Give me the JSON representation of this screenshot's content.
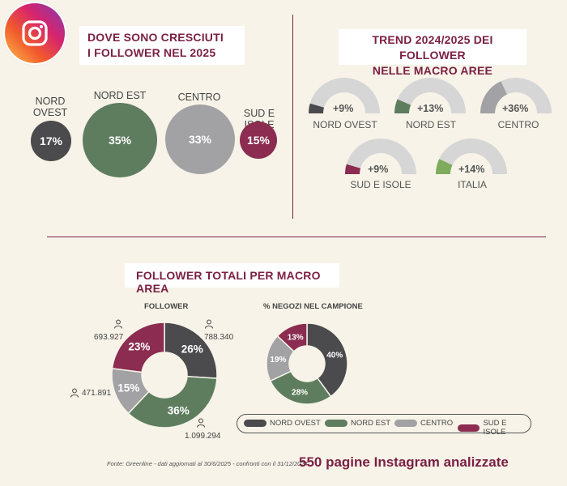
{
  "titles": {
    "growth_line1": "DOVE SONO CRESCIUTI",
    "growth_line2": "I FOLLOWER  NEL 2025",
    "trend_line1": "TREND 2024/2025 DEI FOLLOWER",
    "trend_line2": "NELLE MACRO AREE",
    "totals": "FOLLOWER TOTALI PER MACRO AREA"
  },
  "colors": {
    "nord_ovest": "#4b4b4d",
    "nord_est": "#5e7d5e",
    "centro": "#a2a2a4",
    "sud_isole": "#8b2c50",
    "italia": "#7fab5c",
    "gauge_bg": "#d6d6d6",
    "accent": "#7a1f43"
  },
  "growth": {
    "nord_ovest": {
      "label_line1": "NORD",
      "label_line2": "OVEST",
      "value": "17%"
    },
    "nord_est": {
      "label": "NORD EST",
      "value": "35%"
    },
    "centro": {
      "label": "CENTRO",
      "value": "33%"
    },
    "sud_isole": {
      "label": "SUD E ISOLE",
      "value": "15%"
    }
  },
  "trend": {
    "nord_ovest": {
      "label": "NORD OVEST",
      "value": "+9%"
    },
    "nord_est": {
      "label": "NORD EST",
      "value": "+13%"
    },
    "centro": {
      "label": "CENTRO",
      "value": "+36%"
    },
    "sud_isole": {
      "label": "SUD E ISOLE",
      "value": "+9%"
    },
    "italia": {
      "label": "ITALIA",
      "value": "+14%"
    }
  },
  "chart_data": [
    {
      "type": "pie",
      "title": "FOLLOWER",
      "categories": [
        "NORD OVEST",
        "NORD EST",
        "CENTRO",
        "SUD E ISOLE"
      ],
      "values": [
        26,
        36,
        15,
        23
      ],
      "value_labels": [
        "26%",
        "36%",
        "15%",
        "23%"
      ],
      "counts": [
        "788.340",
        "1.099.294",
        "471.891",
        "693.927"
      ]
    },
    {
      "type": "pie",
      "title": "% NEGOZI NEL CAMPIONE",
      "categories": [
        "NORD OVEST",
        "NORD EST",
        "CENTRO",
        "SUD E ISOLE"
      ],
      "values": [
        40,
        28,
        19,
        13
      ],
      "value_labels": [
        "40%",
        "28%",
        "19%",
        "13%"
      ]
    }
  ],
  "legend": [
    "NORD OVEST",
    "NORD EST",
    "CENTRO",
    "SUD E ISOLE"
  ],
  "footer": {
    "source": "Fonte: Greenline - dati aggiornati al 30/6/2025 - confronti con il 31/12/2024",
    "summary": "550 pagine Instagram analizzate"
  }
}
